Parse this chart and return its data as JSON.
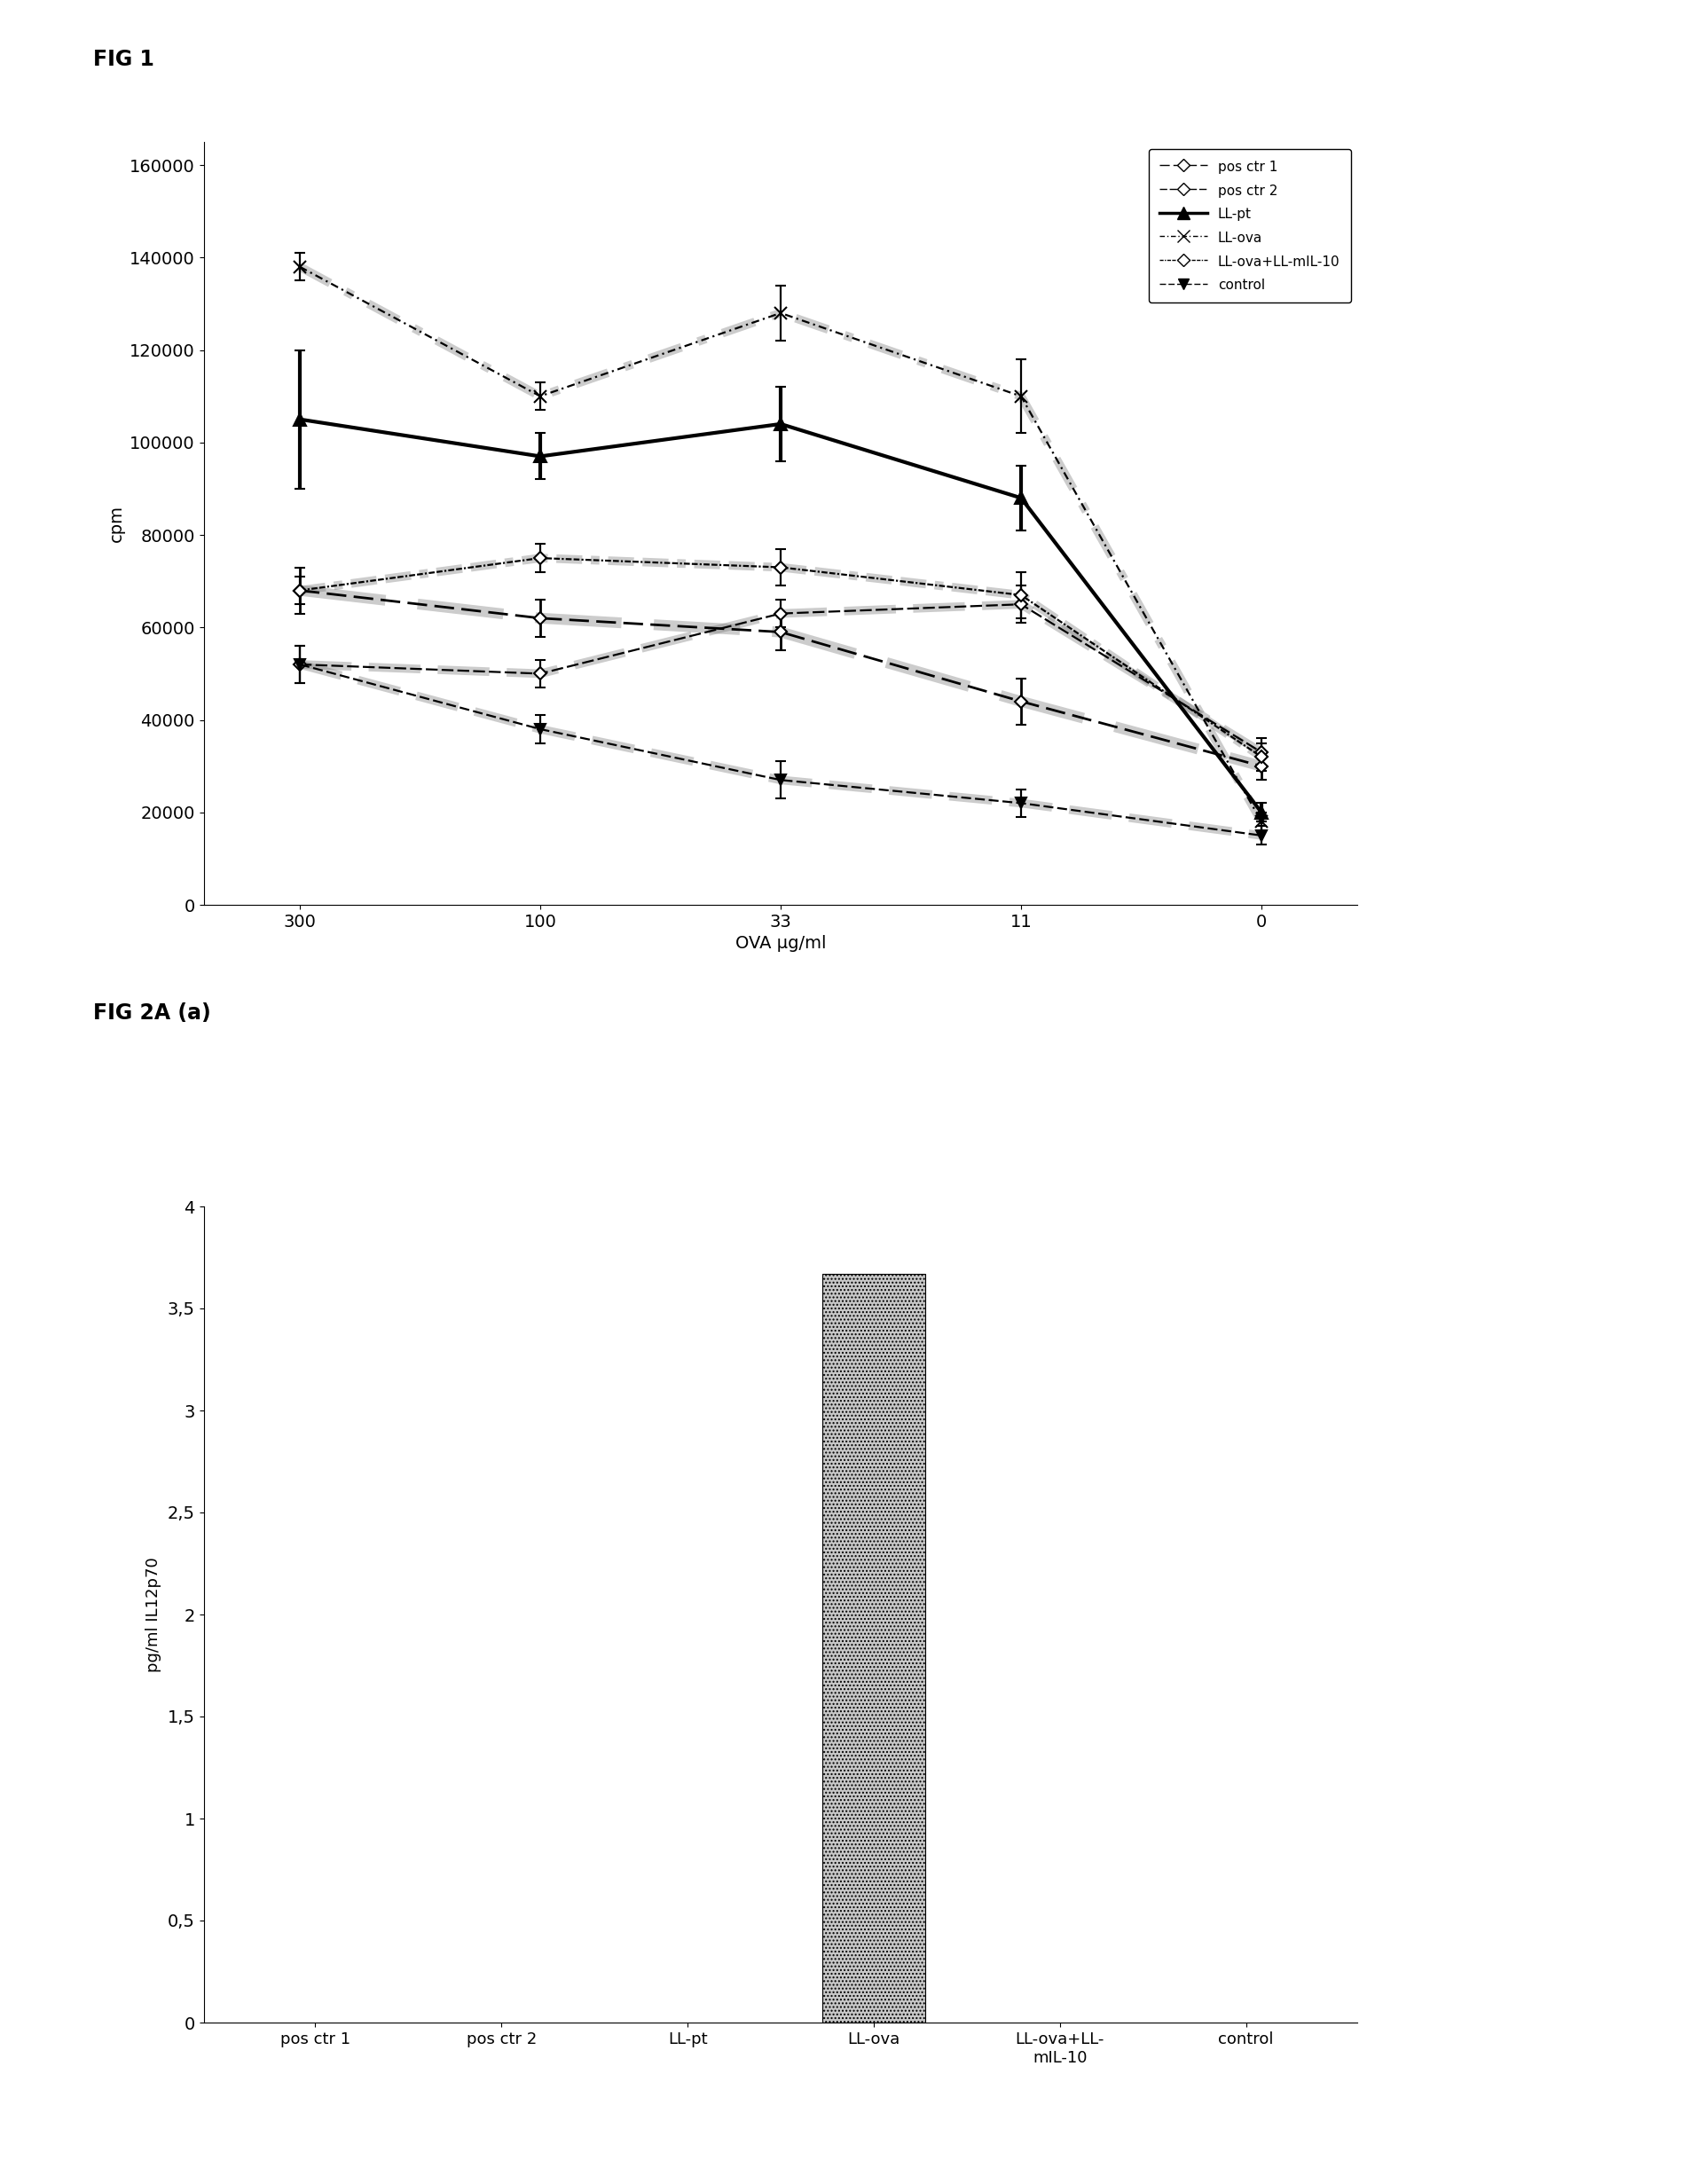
{
  "fig1": {
    "title": "FIG 1",
    "xlabel": "OVA µg/ml",
    "ylabel": "cpm",
    "x_labels": [
      "300",
      "100",
      "33",
      "11",
      "0"
    ],
    "ylim": [
      0,
      165000
    ],
    "yticks": [
      0,
      20000,
      40000,
      60000,
      80000,
      100000,
      120000,
      140000,
      160000
    ],
    "series": [
      {
        "name": "pos ctr 1",
        "y": [
          68000,
          62000,
          59000,
          44000,
          30000
        ],
        "yerr": [
          5000,
          4000,
          4000,
          5000,
          3000
        ],
        "linestyle": "dashed_hatch",
        "marker": "D",
        "markersize": 7,
        "linewidth": 2.5,
        "markerfacecolor": "white"
      },
      {
        "name": "pos ctr 2",
        "y": [
          52000,
          50000,
          63000,
          65000,
          33000
        ],
        "yerr": [
          4000,
          3000,
          3000,
          4000,
          3000
        ],
        "linestyle": "dashed_hatch2",
        "marker": "D",
        "markersize": 7,
        "linewidth": 2.0,
        "markerfacecolor": "white"
      },
      {
        "name": "LL-pt",
        "y": [
          105000,
          97000,
          104000,
          88000,
          20000
        ],
        "yerr": [
          15000,
          5000,
          8000,
          7000,
          2000
        ],
        "linestyle": "solid",
        "marker": "^",
        "markersize": 10,
        "linewidth": 3.0,
        "markerfacecolor": "black"
      },
      {
        "name": "LL-ova",
        "y": [
          138000,
          110000,
          128000,
          110000,
          18000
        ],
        "yerr": [
          3000,
          3000,
          6000,
          8000,
          2000
        ],
        "linestyle": "dashed_hatch3",
        "marker": "x",
        "markersize": 10,
        "linewidth": 2.0,
        "markerfacecolor": "black"
      },
      {
        "name": "LL-ova+LL-mIL-10",
        "y": [
          68000,
          75000,
          73000,
          67000,
          32000
        ],
        "yerr": [
          3000,
          3000,
          4000,
          5000,
          3000
        ],
        "linestyle": "dotted_hatch",
        "marker": "D",
        "markersize": 7,
        "linewidth": 2.0,
        "markerfacecolor": "white"
      },
      {
        "name": "control",
        "y": [
          52000,
          38000,
          27000,
          22000,
          15000
        ],
        "yerr": [
          4000,
          3000,
          4000,
          3000,
          2000
        ],
        "linestyle": "dashed_hatch4",
        "marker": "v",
        "markersize": 9,
        "linewidth": 2.0,
        "markerfacecolor": "black"
      }
    ]
  },
  "fig2a": {
    "title": "FIG 2A (a)",
    "xlabel": "",
    "ylabel": "pg/ml IL12p70",
    "categories": [
      "pos ctr 1",
      "pos ctr 2",
      "LL-pt",
      "LL-ova",
      "LL-ova+LL-\nmIL-10",
      "control"
    ],
    "values": [
      0,
      0,
      0,
      3.67,
      0,
      0
    ],
    "ylim": [
      0,
      4
    ],
    "yticks": [
      0,
      0.5,
      1,
      1.5,
      2,
      2.5,
      3,
      3.5,
      4
    ],
    "bar_color": "#c8c8c8",
    "bar_width": 0.55
  }
}
